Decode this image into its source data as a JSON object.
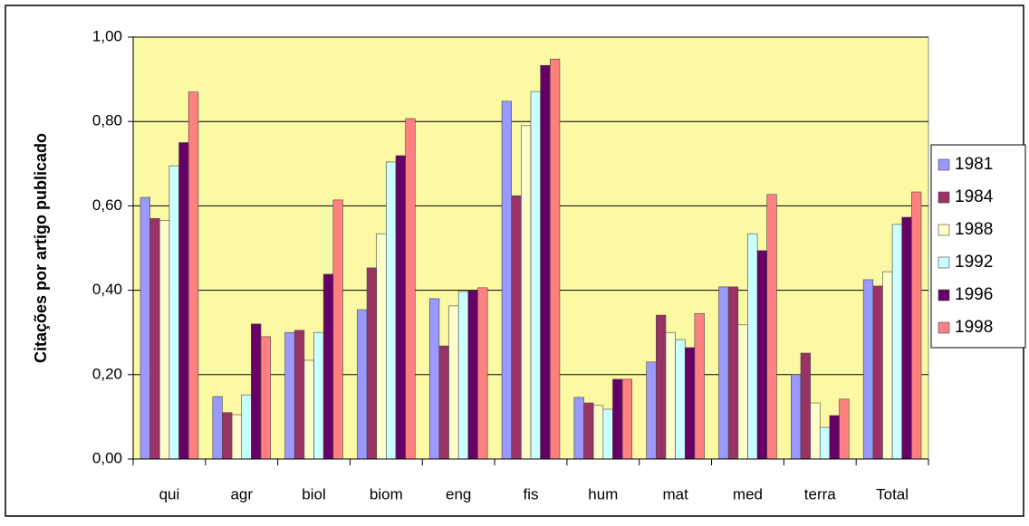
{
  "chart_data": {
    "type": "bar",
    "y_axis_label": "Citações por artigo publicado",
    "categories": [
      "qui",
      "agr",
      "biol",
      "biom",
      "eng",
      "fis",
      "hum",
      "mat",
      "med",
      "terra",
      "Total"
    ],
    "series": [
      {
        "name": "1981",
        "color": "#9999ff",
        "values": [
          0.62,
          0.148,
          0.3,
          0.354,
          0.38,
          0.848,
          0.146,
          0.23,
          0.408,
          0.2,
          0.425
        ]
      },
      {
        "name": "1984",
        "color": "#993366",
        "values": [
          0.57,
          0.11,
          0.305,
          0.453,
          0.268,
          0.624,
          0.133,
          0.341,
          0.408,
          0.251,
          0.41
        ]
      },
      {
        "name": "1988",
        "color": "#ffffcc",
        "values": [
          0.565,
          0.105,
          0.234,
          0.534,
          0.363,
          0.79,
          0.127,
          0.3,
          0.318,
          0.133,
          0.444
        ]
      },
      {
        "name": "1992",
        "color": "#ccffff",
        "values": [
          0.695,
          0.152,
          0.3,
          0.704,
          0.397,
          0.871,
          0.118,
          0.283,
          0.534,
          0.075,
          0.556
        ]
      },
      {
        "name": "1996",
        "color": "#660066",
        "values": [
          0.75,
          0.32,
          0.438,
          0.719,
          0.399,
          0.933,
          0.189,
          0.264,
          0.494,
          0.103,
          0.573
        ]
      },
      {
        "name": "1998",
        "color": "#ff8080",
        "values": [
          0.87,
          0.29,
          0.614,
          0.807,
          0.406,
          0.948,
          0.189,
          0.345,
          0.627,
          0.142,
          0.633
        ]
      }
    ],
    "ylim": [
      0,
      1
    ],
    "yticks": [
      {
        "value": 0,
        "label": "0,00"
      },
      {
        "value": 0.2,
        "label": "0,20"
      },
      {
        "value": 0.4,
        "label": "0,40"
      },
      {
        "value": 0.6,
        "label": "0,60"
      },
      {
        "value": 0.8,
        "label": "0,80"
      },
      {
        "value": 1,
        "label": "1,00"
      }
    ],
    "grid": true,
    "legend": "right"
  }
}
